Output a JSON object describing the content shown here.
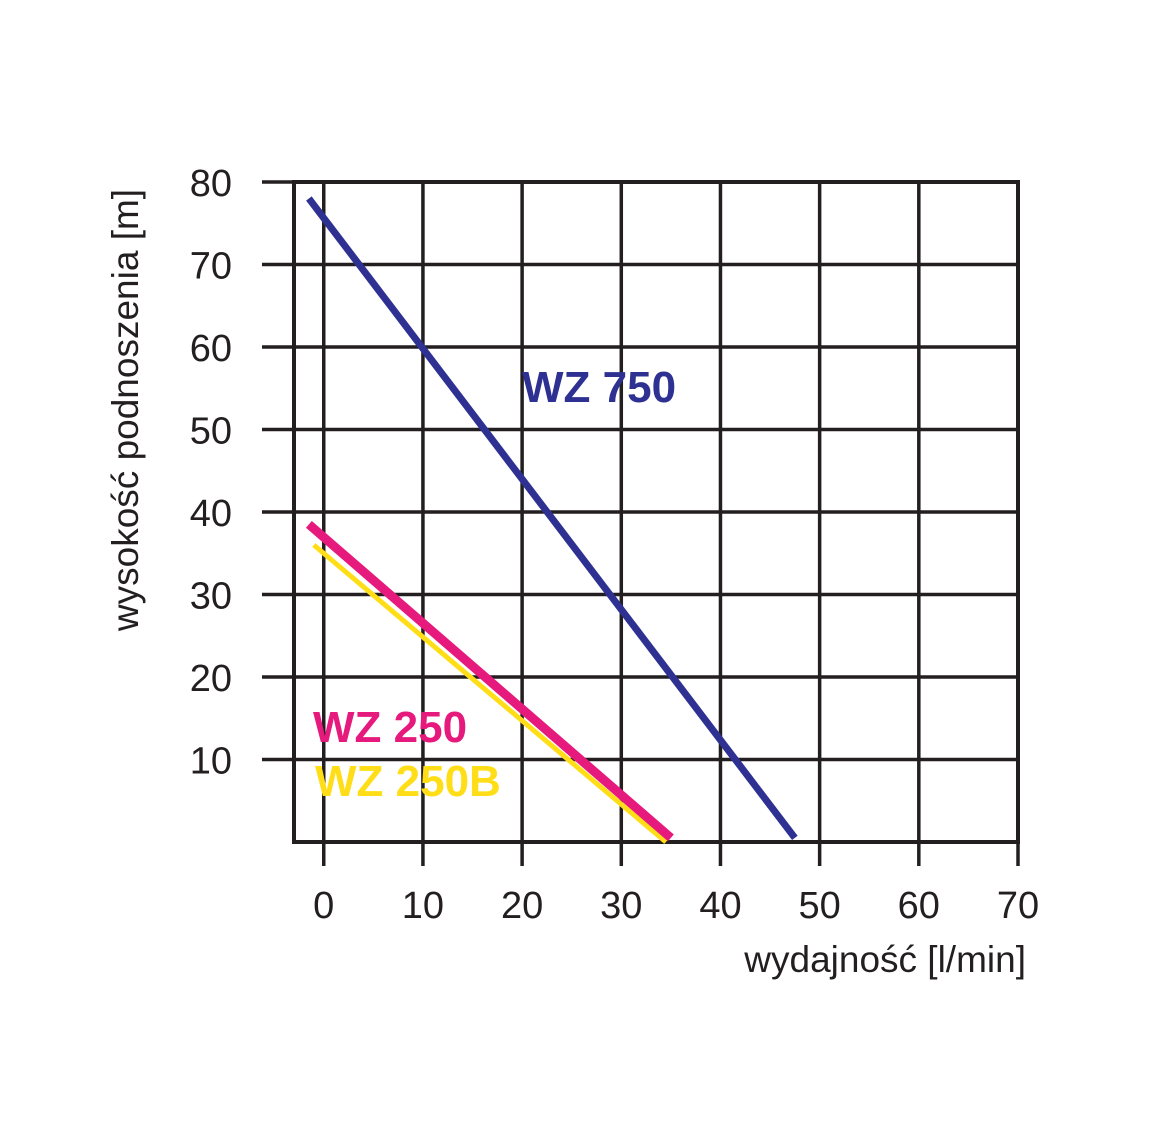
{
  "chart_data": {
    "type": "line",
    "title": "",
    "xlabel": "wydajność [l/min]",
    "ylabel": "wysokość podnoszenia [m]",
    "xlim": [
      -3,
      70
    ],
    "ylim": [
      0,
      80
    ],
    "grid": true,
    "x_ticks": [
      "0",
      "10",
      "20",
      "30",
      "40",
      "50",
      "60",
      "70"
    ],
    "y_ticks": [
      "10",
      "20",
      "30",
      "40",
      "50",
      "60",
      "70",
      "80"
    ],
    "series": [
      {
        "name": "WZ 750",
        "color": "#2e3192",
        "x": [
          -1.5,
          47.5
        ],
        "y": [
          78,
          0.5
        ]
      },
      {
        "name": "WZ 250",
        "color": "#e6197d",
        "x": [
          -1.5,
          35
        ],
        "y": [
          38.5,
          0.5
        ]
      },
      {
        "name": "WZ 250B",
        "color": "#ffde17",
        "x": [
          -1,
          34.5
        ],
        "y": [
          36,
          0
        ]
      }
    ]
  }
}
